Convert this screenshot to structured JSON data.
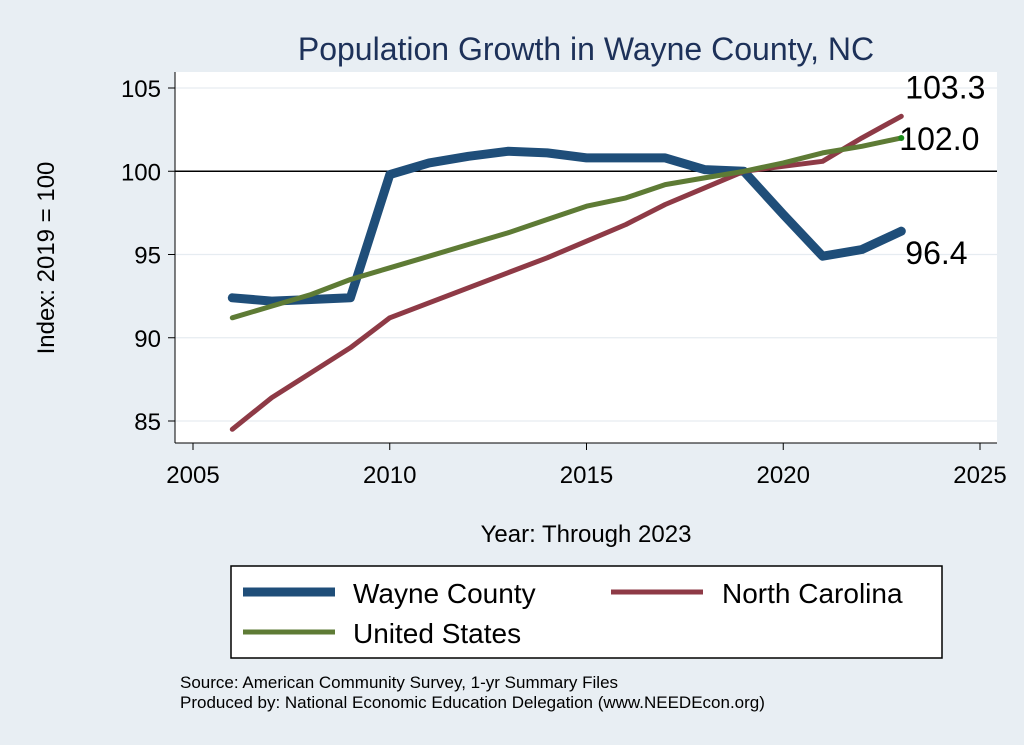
{
  "chart_data": {
    "type": "line",
    "title": "Population Growth in Wayne County, NC",
    "xlabel": "Year: Through 2023",
    "ylabel": "Index: 2019 = 100",
    "xlim": [
      2005,
      2025
    ],
    "ylim": [
      84,
      105
    ],
    "xticks": [
      2005,
      2010,
      2015,
      2020,
      2025
    ],
    "yticks": [
      85,
      90,
      95,
      100,
      105
    ],
    "reference_line": 100,
    "grid": true,
    "x": [
      2006,
      2007,
      2008,
      2009,
      2010,
      2011,
      2012,
      2013,
      2014,
      2015,
      2016,
      2017,
      2018,
      2019,
      2020,
      2021,
      2022,
      2023
    ],
    "series": [
      {
        "name": "Wayne  County",
        "color": "#1f4e79",
        "values": [
          92.4,
          92.2,
          92.3,
          92.4,
          99.8,
          100.5,
          100.9,
          101.2,
          101.1,
          100.8,
          100.8,
          100.8,
          100.1,
          100.0,
          97.4,
          94.9,
          95.3,
          96.4
        ],
        "end_label": "96.4"
      },
      {
        "name": "North Carolina",
        "color": "#8e3a46",
        "values": [
          84.5,
          86.4,
          87.9,
          89.4,
          91.2,
          92.1,
          93.0,
          93.9,
          94.8,
          95.8,
          96.8,
          98.0,
          99.0,
          100.0,
          100.3,
          100.6,
          102.0,
          103.3
        ],
        "end_label": "103.3"
      },
      {
        "name": "United States",
        "color": "#5e7b35",
        "values": [
          91.2,
          91.9,
          92.6,
          93.5,
          94.2,
          94.9,
          95.6,
          96.3,
          97.1,
          97.9,
          98.4,
          99.2,
          99.6,
          100.0,
          100.5,
          101.1,
          101.5,
          102.0
        ],
        "end_label": "102.0"
      }
    ],
    "legend": [
      "Wayne  County",
      "North Carolina",
      "United States"
    ],
    "legend_position": "bottom"
  },
  "footer": {
    "source": "Source: American Community Survey, 1-yr Summary Files",
    "produced": "Produced by: National Economic Education Delegation (www.NEEDEcon.org)"
  }
}
